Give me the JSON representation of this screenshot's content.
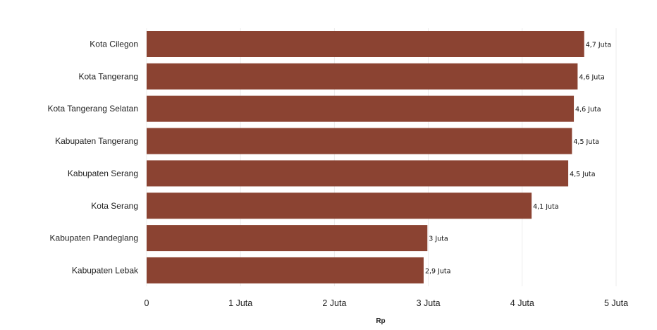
{
  "chart_data": {
    "type": "bar",
    "orientation": "horizontal",
    "categories": [
      "Kota Cilegon",
      "Kota Tangerang",
      "Kota Tangerang Selatan",
      "Kabupaten Tangerang",
      "Kabupaten Serang",
      "Kota Serang",
      "Kabupaten Pandeglang",
      "Kabupaten Lebak"
    ],
    "values": [
      4.66,
      4.59,
      4.55,
      4.53,
      4.49,
      4.1,
      2.99,
      2.95
    ],
    "value_labels": [
      "4,7 Juta",
      "4,6 Juta",
      "4,6 Juta",
      "4,5 Juta",
      "4,5 Juta",
      "4,1 Juta",
      "3 Juta",
      "2,9 Juta"
    ],
    "xticks": [
      0,
      1,
      2,
      3,
      4,
      5
    ],
    "xtick_labels": [
      "0",
      "1 Juta",
      "2 Juta",
      "3 Juta",
      "4 Juta",
      "5 Juta"
    ],
    "xlim": [
      0,
      5
    ],
    "xlabel": "Rp",
    "ylabel": "",
    "title": "",
    "grid": true,
    "bar_color": "#8b4332"
  }
}
